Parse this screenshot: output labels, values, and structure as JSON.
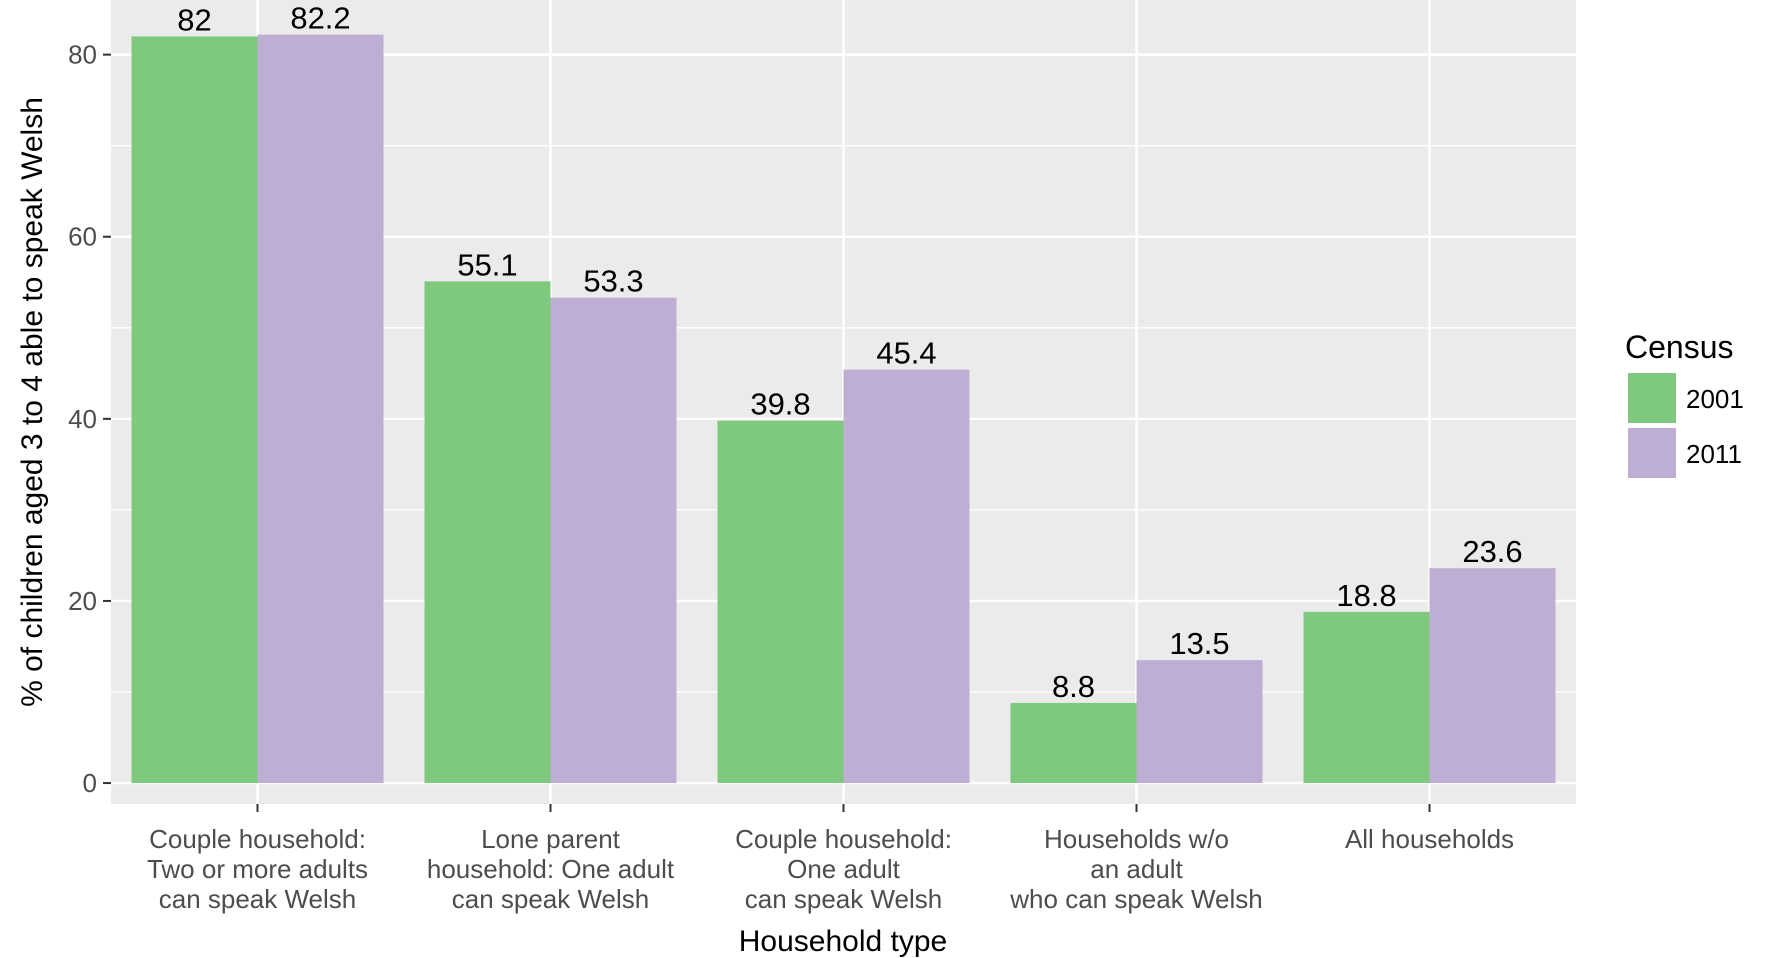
{
  "chart_data": {
    "type": "bar",
    "categories": [
      [
        "Couple household:",
        "Two or more adults",
        "can speak Welsh"
      ],
      [
        "Lone parent",
        "household: One adult",
        "can speak Welsh"
      ],
      [
        "Couple household:",
        "One adult",
        "can speak Welsh"
      ],
      [
        "Households w/o",
        "an adult",
        "who can speak Welsh"
      ],
      [
        "All households"
      ]
    ],
    "series": [
      {
        "name": "2001",
        "color": "#7fc97f",
        "values": [
          82,
          55.1,
          39.8,
          8.8,
          18.8
        ]
      },
      {
        "name": "2011",
        "color": "#beaed4",
        "values": [
          82.2,
          53.3,
          45.4,
          13.5,
          23.6
        ]
      }
    ],
    "xlabel": "Household type",
    "ylabel": "% of children aged 3 to 4 able to speak Welsh",
    "ylim": [
      -2.3,
      86
    ],
    "yticks": [
      0,
      20,
      40,
      60,
      80
    ],
    "grid": true,
    "legend": {
      "title": "Census",
      "placement": "right"
    },
    "panel_background": "#ebebeb",
    "gridline_color": "#ffffff"
  }
}
